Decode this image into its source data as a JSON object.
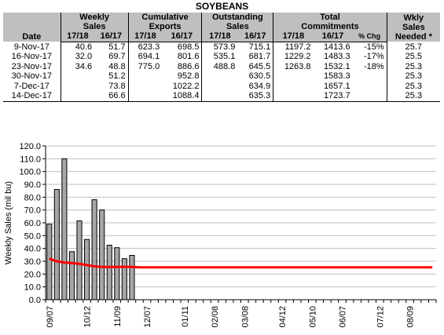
{
  "title": "SOYBEANS",
  "table": {
    "group_headers": [
      "Weekly\nSales",
      "Cumulative\nExports",
      "Outstanding\nSales",
      "Total\nCommitments",
      "Wkly\nSales\nNeeded *"
    ],
    "date_label": "Date",
    "sub_headers": [
      "17/18",
      "16/17",
      "17/18",
      "16/17",
      "17/18",
      "16/17",
      "17/18",
      "16/17",
      "% Chg"
    ],
    "rows": [
      {
        "date": "9-Nov-17",
        "cells": [
          "40.6",
          "51.7",
          "623.3",
          "698.5",
          "573.9",
          "715.1",
          "1197.2",
          "1413.6",
          "-15%",
          "25.7"
        ]
      },
      {
        "date": "16-Nov-17",
        "cells": [
          "32.0",
          "69.7",
          "694.1",
          "801.6",
          "535.1",
          "681.7",
          "1229.2",
          "1483.3",
          "-17%",
          "25.5"
        ]
      },
      {
        "date": "23-Nov-17",
        "cells": [
          "34.6",
          "48.8",
          "775.0",
          "886.6",
          "488.8",
          "645.5",
          "1263.8",
          "1532.1",
          "-18%",
          "25.3"
        ]
      },
      {
        "date": "30-Nov-17",
        "cells": [
          "",
          "51.2",
          "",
          "952.8",
          "",
          "630.5",
          "",
          "1583.3",
          "",
          "25.3"
        ]
      },
      {
        "date": "7-Dec-17",
        "cells": [
          "",
          "73.8",
          "",
          "1022.2",
          "",
          "634.9",
          "",
          "1657.1",
          "",
          "25.3"
        ]
      },
      {
        "date": "14-Dec-17",
        "cells": [
          "",
          "66.6",
          "",
          "1088.4",
          "",
          "635.3",
          "",
          "1723.7",
          "",
          "25.3"
        ]
      }
    ]
  },
  "chart_data": {
    "type": "bar",
    "ylabel": "Weekly Sales (mil bu)",
    "ylim": [
      0,
      120
    ],
    "yticks": [
      "0.0",
      "10.0",
      "20.0",
      "30.0",
      "40.0",
      "50.0",
      "60.0",
      "70.0",
      "80.0",
      "90.0",
      "100.0",
      "110.0",
      "120.0"
    ],
    "xtick_labels": [
      "09/07",
      "10/12",
      "11/09",
      "12/07",
      "01/11",
      "02/08",
      "03/08",
      "04/12",
      "05/10",
      "06/07",
      "07/12",
      "08/09"
    ],
    "bar_values": [
      59,
      86,
      110,
      37.5,
      61.5,
      47,
      78,
      70,
      42.5,
      40.6,
      32.0,
      34.6
    ],
    "line_values": [
      32,
      30,
      29,
      28.5,
      28,
      27,
      26,
      25.5,
      25.5,
      25.5,
      25.7,
      25.5,
      25.3,
      25.3,
      25.3,
      25.3
    ],
    "line_final_value": 25.3,
    "grid": true,
    "colors": {
      "bars": "#a6a6a6",
      "line": "#ff0000"
    }
  }
}
